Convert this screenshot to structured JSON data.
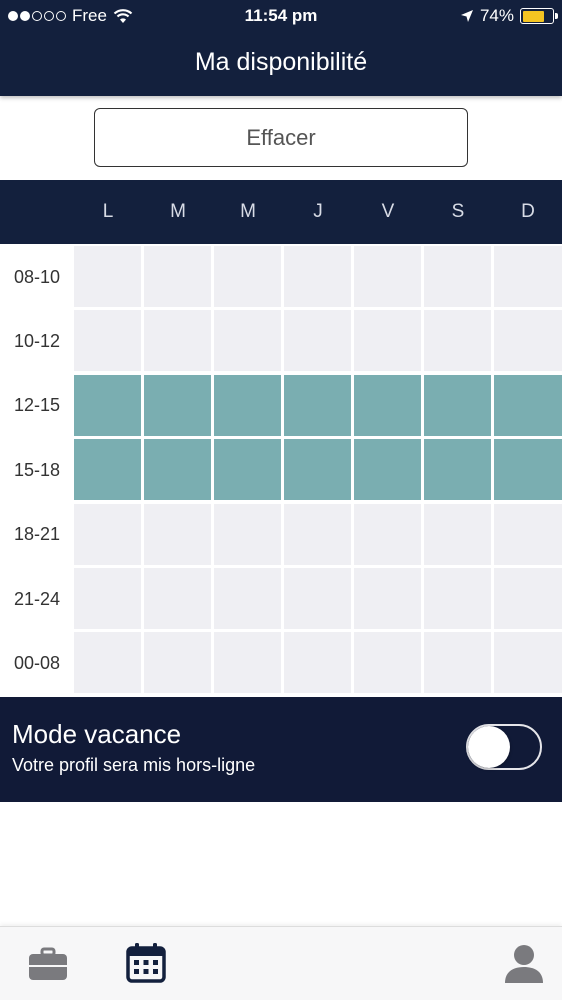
{
  "status_bar": {
    "carrier": "Free",
    "time": "11:54 pm",
    "battery": "74%",
    "battery_level": 0.74
  },
  "header": {
    "title": "Ma disponibilité"
  },
  "clear_button": {
    "label": "Effacer"
  },
  "schedule": {
    "days": [
      "L",
      "M",
      "M",
      "J",
      "V",
      "S",
      "D"
    ],
    "slots": [
      "08-10",
      "10-12",
      "12-15",
      "15-18",
      "18-21",
      "21-24",
      "00-08"
    ],
    "availability": [
      [
        false,
        false,
        false,
        false,
        false,
        false,
        false
      ],
      [
        false,
        false,
        false,
        false,
        false,
        false,
        false
      ],
      [
        true,
        true,
        true,
        true,
        true,
        true,
        true
      ],
      [
        true,
        true,
        true,
        true,
        true,
        true,
        true
      ],
      [
        false,
        false,
        false,
        false,
        false,
        false,
        false
      ],
      [
        false,
        false,
        false,
        false,
        false,
        false,
        false
      ],
      [
        false,
        false,
        false,
        false,
        false,
        false,
        false
      ]
    ],
    "colors": {
      "available": "#7aaeb1",
      "unavailable": "#efeff3"
    }
  },
  "vacation": {
    "title": "Mode vacance",
    "subtitle": "Votre profil sera mis hors-ligne",
    "enabled": false
  },
  "tabbar": {
    "items": [
      {
        "icon": "briefcase-icon",
        "active": false
      },
      {
        "icon": "calendar-icon",
        "active": true
      },
      {
        "icon": "user-icon",
        "active": false
      }
    ]
  },
  "theme": {
    "navy": "#13203d",
    "accent_battery": "#f4c422"
  }
}
